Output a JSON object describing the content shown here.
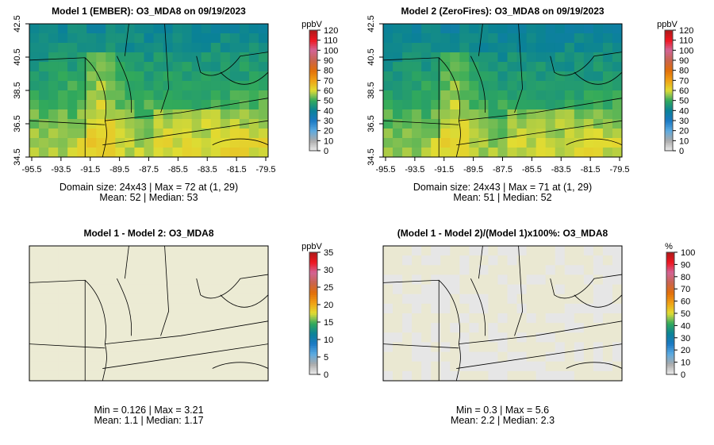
{
  "chart_data": [
    {
      "type": "heatmap",
      "title": "Model 1 (EMBER): O3_MDA8 on 09/19/2023",
      "unit": "ppbV",
      "xticks": [
        "-95.5",
        "-93.5",
        "-91.5",
        "-89.5",
        "-87.5",
        "-85.5",
        "-83.5",
        "-81.5",
        "-79.5"
      ],
      "yticks": [
        "34.5",
        "36.5",
        "38.5",
        "40.5",
        "42.5"
      ],
      "cbar_ticks": [
        "0",
        "10",
        "20",
        "30",
        "40",
        "50",
        "60",
        "70",
        "80",
        "90",
        "100",
        "110",
        "120"
      ],
      "stats": [
        "Domain size: 24x43 | Max = 72 at (1, 29)",
        "Mean: 52 |  Median: 53"
      ],
      "range": [
        0,
        120
      ],
      "mean": 52,
      "median": 53,
      "max": 72
    },
    {
      "type": "heatmap",
      "title": "Model 2 (ZeroFires): O3_MDA8 on 09/19/2023",
      "unit": "ppbV",
      "xticks": [
        "-95.5",
        "-93.5",
        "-91.5",
        "-89.5",
        "-87.5",
        "-85.5",
        "-83.5",
        "-81.5",
        "-79.5"
      ],
      "yticks": [
        "34.5",
        "36.5",
        "38.5",
        "40.5",
        "42.5"
      ],
      "cbar_ticks": [
        "0",
        "10",
        "20",
        "30",
        "40",
        "50",
        "60",
        "70",
        "80",
        "90",
        "100",
        "110",
        "120"
      ],
      "stats": [
        "Domain size: 24x43 | Max = 71 at (1, 29)",
        "Mean: 51 |  Median: 52"
      ],
      "range": [
        0,
        120
      ],
      "mean": 51,
      "median": 52,
      "max": 71
    },
    {
      "type": "heatmap",
      "title": "Model 1 - Model 2: O3_MDA8",
      "unit": "ppbV",
      "cbar_ticks": [
        "0",
        "5",
        "10",
        "15",
        "20",
        "25",
        "30",
        "35"
      ],
      "stats": [
        "Min = 0.126 | Max = 3.21",
        "Mean: 1.1 |  Median: 1.17"
      ],
      "range": [
        0,
        35
      ],
      "min": 0.126,
      "max": 3.21,
      "mean": 1.1,
      "median": 1.17
    },
    {
      "type": "heatmap",
      "title": "(Model 1 - Model 2)/(Model 1)x100%: O3_MDA8",
      "unit": "%",
      "cbar_ticks": [
        "0",
        "10",
        "20",
        "30",
        "40",
        "50",
        "60",
        "70",
        "80",
        "90",
        "100"
      ],
      "stats": [
        "Min = 0.3 | Max = 5.6",
        "Mean: 2.2 |  Median: 2.3"
      ],
      "range": [
        0,
        100
      ],
      "min": 0.3,
      "max": 5.6,
      "mean": 2.2,
      "median": 2.3
    }
  ]
}
